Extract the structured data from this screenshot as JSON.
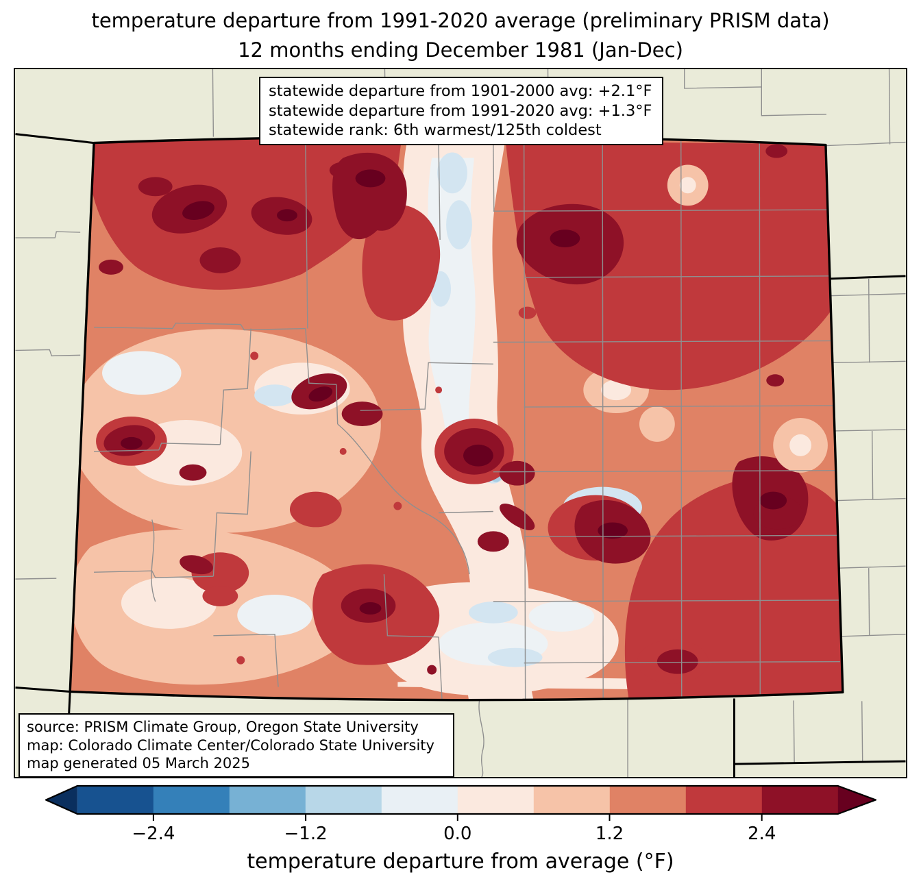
{
  "title": {
    "line1": "temperature departure from 1991-2020 average (preliminary PRISM data)",
    "line2": "12 months ending December 1981 (Jan-Dec)"
  },
  "stats_box": {
    "lines": [
      "statewide departure from 1901-2000 avg: +2.1°F",
      "statewide departure from 1991-2020 avg: +1.3°F",
      "statewide rank: 6th warmest/125th coldest"
    ]
  },
  "source_box": {
    "lines": [
      "source: PRISM Climate Group, Oregon State University",
      "map: Colorado Climate Center/Colorado State University",
      "map generated 05 March 2025"
    ]
  },
  "colorbar": {
    "label": "temperature departure from average (°F)",
    "ticks": [
      "−2.4",
      "−1.2",
      "0.0",
      "1.2",
      "2.4"
    ],
    "tick_values": [
      -2.4,
      -1.2,
      0.0,
      1.2,
      2.4
    ],
    "range": [
      -3.0,
      3.0
    ],
    "segments": [
      "#175290",
      "#3480b9",
      "#77b1d4",
      "#b8d7e8",
      "#e9f0f5",
      "#fbe9df",
      "#f6c3a8",
      "#e08265",
      "#c0393c",
      "#8e1127"
    ],
    "arrow_left": "#0a2f5e",
    "arrow_right": "#67001f"
  },
  "map": {
    "region": "Colorado",
    "palette": {
      "background": "#eaebd9",
      "state_line": "#000000",
      "county_line": "#8f8f8f",
      "base": "#e08265",
      "light": "#f6c3a8",
      "pale": "#fbe9df",
      "near_white": "#edf2f5",
      "blue_light": "#d3e5f1",
      "blue": "#a9cee4",
      "red": "#c0393c",
      "maroon": "#8e1127",
      "darkest": "#67001f"
    }
  }
}
